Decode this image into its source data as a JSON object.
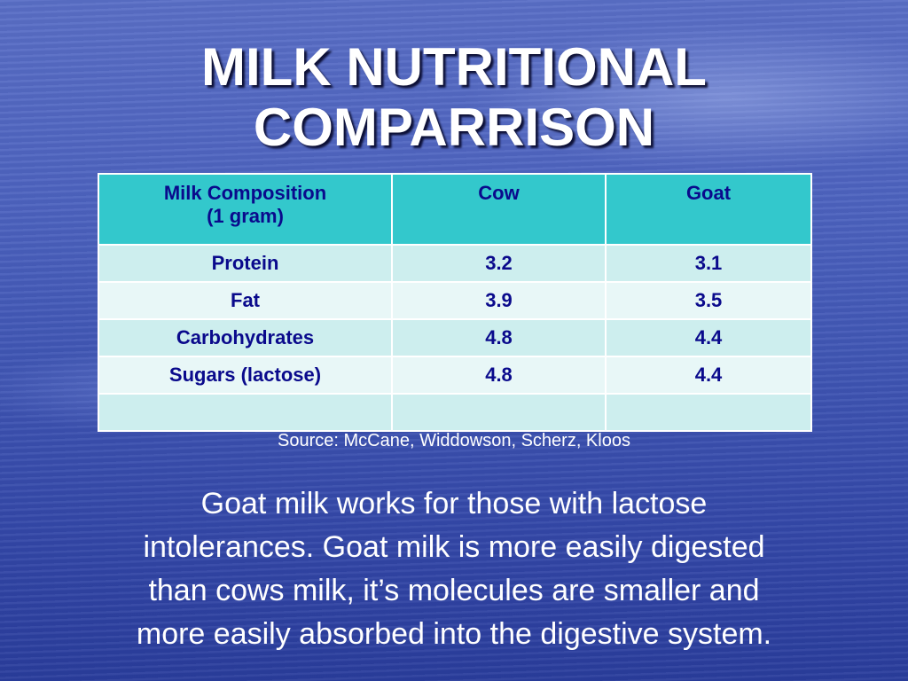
{
  "title": {
    "line1": "MILK NUTRITIONAL",
    "line2": "COMPARRISON"
  },
  "table": {
    "headers": {
      "composition_line1": "Milk Composition",
      "composition_line2": "(1  gram)",
      "cow": "Cow",
      "goat": "Goat"
    },
    "rows": [
      {
        "label": "Protein",
        "cow": "3.2",
        "goat": "3.1"
      },
      {
        "label": "Fat",
        "cow": "3.9",
        "goat": "3.5"
      },
      {
        "label": "Carbohydrates",
        "cow": "4.8",
        "goat": "4.4"
      },
      {
        "label": "Sugars (lactose)",
        "cow": "4.8",
        "goat": "4.4"
      },
      {
        "label": "",
        "cow": "",
        "goat": ""
      }
    ]
  },
  "source": "Source: McCane, Widdowson, Scherz, Kloos",
  "body": {
    "line1": "Goat milk works for those with lactose",
    "line2": "intolerances.  Goat milk is more easily digested",
    "line3": "than cows milk, it’s molecules are smaller and",
    "line4": "more easily absorbed into the digestive system."
  },
  "colors": {
    "header_fill": "#33c8cc",
    "row_fill_odd": "#cdeeee",
    "row_fill_even": "#e8f7f7",
    "table_text": "#0a0a8c",
    "background": "#4257b5"
  }
}
